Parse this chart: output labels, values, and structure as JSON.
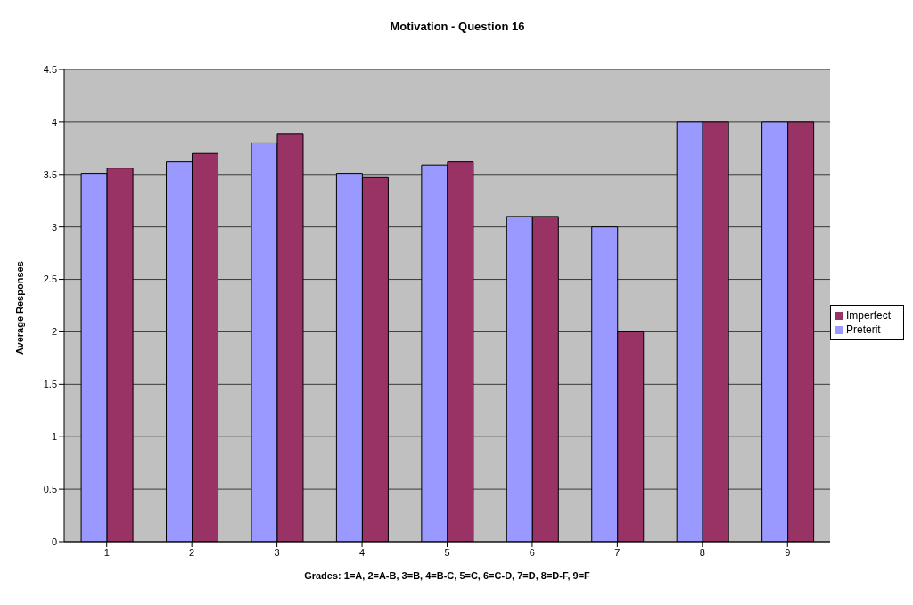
{
  "chart_data": {
    "type": "bar",
    "title": "Motivation - Question 16",
    "xlabel": "Grades: 1=A, 2=A-B, 3=B, 4=B-C, 5=C, 6=C-D, 7=D, 8=D-F, 9=F",
    "ylabel": "Average Responses",
    "categories": [
      "1",
      "2",
      "3",
      "4",
      "5",
      "6",
      "7",
      "8",
      "9"
    ],
    "series": [
      {
        "name": "Preterit",
        "color": "#9999ff",
        "values": [
          3.51,
          3.62,
          3.8,
          3.51,
          3.59,
          3.1,
          3,
          4,
          4
        ]
      },
      {
        "name": "Imperfect",
        "color": "#993366",
        "values": [
          3.56,
          3.7,
          3.89,
          3.47,
          3.62,
          3.1,
          2,
          4,
          4
        ]
      }
    ],
    "ylim": [
      0,
      4.5
    ],
    "yticks": [
      0,
      0.5,
      1,
      1.5,
      2,
      2.5,
      3,
      3.5,
      4,
      4.5
    ],
    "grid": "y",
    "legend": "right"
  }
}
